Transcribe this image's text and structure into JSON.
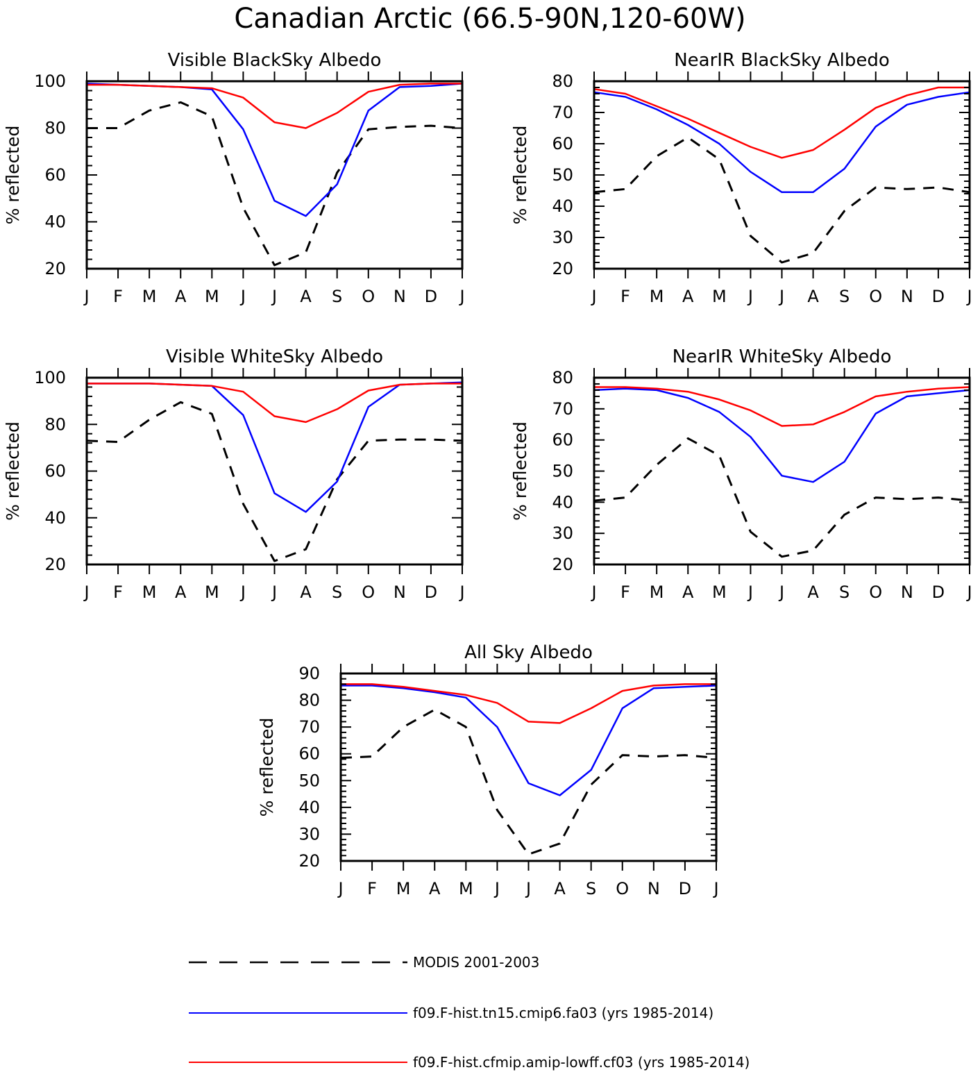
{
  "figure": {
    "title": "Canadian Arctic (66.5-90N,120-60W)",
    "months": [
      "J",
      "F",
      "M",
      "A",
      "M",
      "J",
      "J",
      "A",
      "S",
      "O",
      "N",
      "D",
      "J"
    ],
    "ylabel": "% reflected"
  },
  "legend": [
    {
      "label": "MODIS 2001-2003",
      "color": "#000000",
      "style": "dashed"
    },
    {
      "label": "f09.F-hist.tn15.cmip6.fa03 (yrs 1985-2014)",
      "color": "#0000ff",
      "style": "solid"
    },
    {
      "label": "f09.F-hist.cfmip.amip-lowff.cf03 (yrs 1985-2014)",
      "color": "#ff0000",
      "style": "solid"
    }
  ],
  "chart_data": [
    {
      "type": "line",
      "title": "Visible BlackSky Albedo",
      "ylabel": "% reflected",
      "categories": [
        "J",
        "F",
        "M",
        "A",
        "M",
        "J",
        "J",
        "A",
        "S",
        "O",
        "N",
        "D",
        "J"
      ],
      "ylim": [
        20,
        100
      ],
      "yticks": [
        20,
        40,
        60,
        80,
        100
      ],
      "series": [
        {
          "name": "MODIS 2001-2003",
          "color": "#000000",
          "dash": true,
          "values": [
            80,
            80,
            87.5,
            91,
            85,
            46,
            21.5,
            27,
            61,
            79.5,
            80.5,
            81,
            80
          ]
        },
        {
          "name": "f09.F-hist.tn15.cmip6.fa03 (yrs 1985-2014)",
          "color": "#0000ff",
          "dash": false,
          "values": [
            99,
            98.5,
            98,
            97.5,
            96.5,
            79.5,
            49,
            42.5,
            56,
            87.5,
            97.5,
            98,
            99
          ]
        },
        {
          "name": "f09.F-hist.cfmip.amip-lowff.cf03 (yrs 1985-2014)",
          "color": "#ff0000",
          "dash": false,
          "values": [
            98.5,
            98.5,
            98,
            97.5,
            97,
            93,
            82.5,
            80,
            86.5,
            95.5,
            98.5,
            99,
            99
          ]
        }
      ]
    },
    {
      "type": "line",
      "title": "NearIR BlackSky Albedo",
      "ylabel": "% reflected",
      "categories": [
        "J",
        "F",
        "M",
        "A",
        "M",
        "J",
        "J",
        "A",
        "S",
        "O",
        "N",
        "D",
        "J"
      ],
      "ylim": [
        20,
        80
      ],
      "yticks": [
        20,
        30,
        40,
        50,
        60,
        70,
        80
      ],
      "series": [
        {
          "name": "MODIS 2001-2003",
          "color": "#000000",
          "dash": true,
          "values": [
            44.5,
            45.5,
            56,
            62,
            55,
            30.5,
            22,
            25,
            38.5,
            46,
            45.5,
            46,
            44.5
          ]
        },
        {
          "name": "f09.F-hist.tn15.cmip6.fa03 (yrs 1985-2014)",
          "color": "#0000ff",
          "dash": false,
          "values": [
            76.5,
            75,
            71,
            66,
            60,
            51,
            44.5,
            44.5,
            52,
            65.5,
            72.5,
            75,
            76.5
          ]
        },
        {
          "name": "f09.F-hist.cfmip.amip-lowff.cf03 (yrs 1985-2014)",
          "color": "#ff0000",
          "dash": false,
          "values": [
            77.5,
            76,
            72,
            68,
            63.5,
            59,
            55.5,
            58,
            64.5,
            71.5,
            75.5,
            78,
            78
          ]
        }
      ]
    },
    {
      "type": "line",
      "title": "Visible WhiteSky Albedo",
      "ylabel": "% reflected",
      "categories": [
        "J",
        "F",
        "M",
        "A",
        "M",
        "J",
        "J",
        "A",
        "S",
        "O",
        "N",
        "D",
        "J"
      ],
      "ylim": [
        20,
        100
      ],
      "yticks": [
        20,
        40,
        60,
        80,
        100
      ],
      "series": [
        {
          "name": "MODIS 2001-2003",
          "color": "#000000",
          "dash": true,
          "values": [
            73,
            72.5,
            82,
            89.5,
            84.5,
            46,
            21.5,
            26.5,
            56.5,
            73,
            73.5,
            73.5,
            73
          ]
        },
        {
          "name": "f09.F-hist.tn15.cmip6.fa03 (yrs 1985-2014)",
          "color": "#0000ff",
          "dash": false,
          "values": [
            97.5,
            97.5,
            97.5,
            97,
            96.5,
            84,
            50.5,
            42.5,
            55.5,
            87.5,
            97,
            97.5,
            98
          ]
        },
        {
          "name": "f09.F-hist.cfmip.amip-lowff.cf03 (yrs 1985-2014)",
          "color": "#ff0000",
          "dash": false,
          "values": [
            97.5,
            97.5,
            97.5,
            97,
            96.5,
            94,
            83.5,
            81,
            86.5,
            94.5,
            97,
            97.5,
            97.5
          ]
        }
      ]
    },
    {
      "type": "line",
      "title": "NearIR WhiteSky Albedo",
      "ylabel": "% reflected",
      "categories": [
        "J",
        "F",
        "M",
        "A",
        "M",
        "J",
        "J",
        "A",
        "S",
        "O",
        "N",
        "D",
        "J"
      ],
      "ylim": [
        20,
        80
      ],
      "yticks": [
        20,
        30,
        40,
        50,
        60,
        70,
        80
      ],
      "series": [
        {
          "name": "MODIS 2001-2003",
          "color": "#000000",
          "dash": true,
          "values": [
            40.5,
            41.5,
            52,
            60.5,
            55,
            30.5,
            22.5,
            24.5,
            36,
            41.5,
            41,
            41.5,
            40.5
          ]
        },
        {
          "name": "f09.F-hist.tn15.cmip6.fa03 (yrs 1985-2014)",
          "color": "#0000ff",
          "dash": false,
          "values": [
            76,
            76.5,
            76,
            73.5,
            69,
            61,
            48.5,
            46.5,
            53,
            68.5,
            74,
            75,
            76
          ]
        },
        {
          "name": "f09.F-hist.cfmip.amip-lowff.cf03 (yrs 1985-2014)",
          "color": "#ff0000",
          "dash": false,
          "values": [
            77,
            77,
            76.5,
            75.5,
            73,
            69.5,
            64.5,
            65,
            69,
            74,
            75.5,
            76.5,
            77
          ]
        }
      ]
    },
    {
      "type": "line",
      "title": "All Sky Albedo",
      "ylabel": "% reflected",
      "categories": [
        "J",
        "F",
        "M",
        "A",
        "M",
        "J",
        "J",
        "A",
        "S",
        "O",
        "N",
        "D",
        "J"
      ],
      "ylim": [
        20,
        90
      ],
      "yticks": [
        20,
        30,
        40,
        50,
        60,
        70,
        80,
        90
      ],
      "series": [
        {
          "name": "MODIS 2001-2003",
          "color": "#000000",
          "dash": true,
          "values": [
            58.5,
            59,
            70,
            76.5,
            70,
            39,
            22.5,
            26.5,
            48.5,
            59.5,
            59,
            59.5,
            58.5
          ]
        },
        {
          "name": "f09.F-hist.tn15.cmip6.fa03 (yrs 1985-2014)",
          "color": "#0000ff",
          "dash": false,
          "values": [
            85.5,
            85.5,
            84.5,
            83,
            81,
            70,
            49,
            44.5,
            54,
            77,
            84.5,
            85,
            85.5
          ]
        },
        {
          "name": "f09.F-hist.cfmip.amip-lowff.cf03 (yrs 1985-2014)",
          "color": "#ff0000",
          "dash": false,
          "values": [
            86,
            86,
            85,
            83.5,
            82,
            79,
            72,
            71.5,
            77,
            83.5,
            85.5,
            86,
            86
          ]
        }
      ]
    }
  ]
}
